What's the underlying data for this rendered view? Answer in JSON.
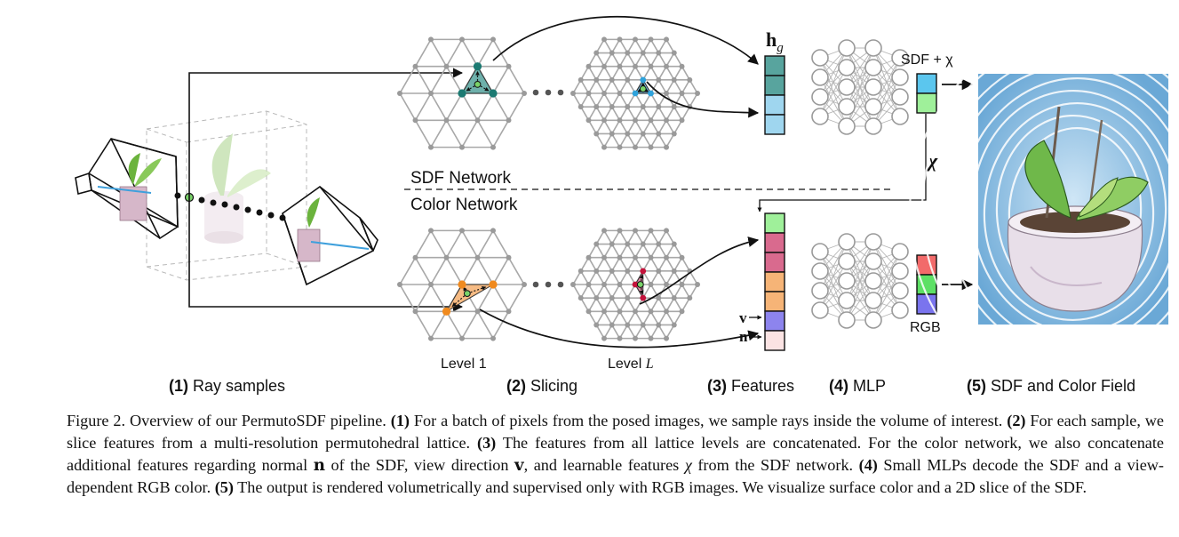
{
  "figure": {
    "network_labels": {
      "sdf": "SDF Network",
      "color": "Color Network"
    },
    "lattice_labels": {
      "level1": "Level 1",
      "levelL_prefix": "Level ",
      "levelL_var": "L"
    },
    "feature_labels": {
      "hg_main": "h",
      "hg_sub": "g",
      "v": "v",
      "n": "n"
    },
    "output_labels": {
      "sdf_chi": "SDF + χ",
      "chi": "χ",
      "rgb": "RGB"
    },
    "stage_labels": [
      {
        "num": "(1)",
        "text": " Ray samples"
      },
      {
        "num": "(2)",
        "text": " Slicing"
      },
      {
        "num": "(3)",
        "text": " Features"
      },
      {
        "num": "(4)",
        "text": " MLP"
      },
      {
        "num": "(5)",
        "text": " SDF and Color Field"
      }
    ],
    "colors": {
      "sdf_triangle": "#5fa8a3",
      "sdf_triangle_small": "#7cc8ee",
      "color_triangle": "#f6b477",
      "color_triangle_small": "#d37a95",
      "sdf_vertex": "#1c7a72",
      "color_vertex": "#f08a1e",
      "hg_cells": [
        "#58a49e",
        "#58a49e",
        "#9fd6ef",
        "#9fd6ef"
      ],
      "color_cells": [
        "#9ff09a",
        "#d96a8e",
        "#d96a8e",
        "#f6b477",
        "#f6b477",
        "#8d84ee",
        "#fbe3e3"
      ],
      "sdf_out": [
        "#5bc6ee",
        "#9ff09a"
      ],
      "rgb_out": [
        "#f26a6a",
        "#5de065",
        "#7a74ee"
      ]
    }
  },
  "caption": {
    "fig": "Figure 2.",
    "s0": " Overview of our PermutoSDF pipeline. ",
    "b1": "(1)",
    "s1": " For a batch of pixels from the posed images, we sample rays inside the volume of interest. ",
    "b2": "(2)",
    "s2": " For each sample, we slice features from a multi-resolution permutohedral lattice. ",
    "b3": "(3)",
    "s3": " The features from all lattice levels are concatenated. For the color network, we also concatenate additional features regarding normal ",
    "n": "n",
    "s4": " of the SDF, view direction ",
    "v": "v",
    "s5": ", and learnable features ",
    "chi": "χ",
    "s6": " from the SDF network. ",
    "b4": "(4)",
    "s7": " Small MLPs decode the SDF and a view-dependent RGB color. ",
    "b5": "(5)",
    "s8": " The output is rendered volumetrically and supervised only with RGB images. We visualize surface color and a 2D slice of the SDF."
  }
}
